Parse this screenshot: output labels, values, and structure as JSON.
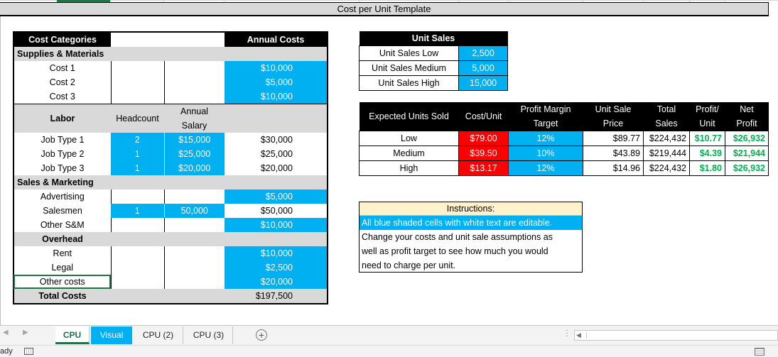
{
  "title": "Cost per Unit Template",
  "cost_table": {
    "header": {
      "category": "Cost Categories",
      "annual": "Annual Costs"
    },
    "supplies": {
      "label": "Supplies & Materials",
      "items": [
        {
          "name": "Cost 1",
          "annual": "$10,000"
        },
        {
          "name": "Cost 2",
          "annual": "$5,000"
        },
        {
          "name": "Cost 3",
          "annual": "$10,000"
        }
      ]
    },
    "labor": {
      "label": "Labor",
      "headcount_label": "Headcount",
      "salary_label_1": "Annual",
      "salary_label_2": "Salary",
      "items": [
        {
          "name": "Job Type 1",
          "headcount": "2",
          "salary": "$15,000",
          "annual": "$30,000"
        },
        {
          "name": "Job Type 2",
          "headcount": "1",
          "salary": "$25,000",
          "annual": "$25,000"
        },
        {
          "name": "Job Type 3",
          "headcount": "1",
          "salary": "$20,000",
          "annual": "$20,000"
        }
      ]
    },
    "sales_marketing": {
      "label": "Sales & Marketing",
      "items": [
        {
          "name": "Advertising",
          "annual": "$5,000"
        },
        {
          "name": "Salesmen",
          "headcount": "1",
          "salary": "50,000",
          "annual": "$50,000"
        },
        {
          "name": "Other S&M",
          "annual": "$10,000"
        }
      ]
    },
    "overhead": {
      "label": "Overhead",
      "items": [
        {
          "name": "Rent",
          "annual": "$10,000"
        },
        {
          "name": "Legal",
          "annual": "$2,500"
        },
        {
          "name": "Other costs",
          "annual": "$20,000"
        }
      ]
    },
    "total": {
      "label": "Total Costs",
      "annual": "$197,500"
    }
  },
  "unit_sales": {
    "header": "Unit Sales",
    "rows": [
      {
        "label": "Unit Sales Low",
        "value": "2,500"
      },
      {
        "label": "Unit Sales Medium",
        "value": "5,000"
      },
      {
        "label": "Unit Sales High",
        "value": "15,000"
      }
    ]
  },
  "profit_table": {
    "headers": {
      "expected": "Expected Units Sold",
      "cost_unit": "Cost/Unit",
      "margin_1": "Profit Margin",
      "margin_2": "Target",
      "price_1": "Unit Sale",
      "price_2": "Price",
      "sales_1": "Total",
      "sales_2": "Sales",
      "ppu_1": "Profit/",
      "ppu_2": "Unit",
      "net_1": "Net",
      "net_2": "Profit"
    },
    "rows": [
      {
        "scenario": "Low",
        "cost_unit": "$79.00",
        "margin": "12%",
        "price": "$89.77",
        "sales": "$224,432",
        "ppu": "$10.77",
        "net": "$26,932"
      },
      {
        "scenario": "Medium",
        "cost_unit": "$39.50",
        "margin": "10%",
        "price": "$43.89",
        "sales": "$219,444",
        "ppu": "$4.39",
        "net": "$21,944"
      },
      {
        "scenario": "High",
        "cost_unit": "$13.17",
        "margin": "12%",
        "price": "$14.96",
        "sales": "$224,432",
        "ppu": "$1.80",
        "net": "$26,932"
      }
    ]
  },
  "instructions": {
    "title": "Instructions:",
    "highlight": "All blue shaded cells with white text are editable.",
    "body_1": "Change your costs and unit sale assumptions as",
    "body_2": "well as profit target to see how much you would",
    "body_3": "need to charge per unit."
  },
  "sheet_tabs": [
    {
      "label": "CPU",
      "active": true
    },
    {
      "label": "Visual",
      "active": false
    },
    {
      "label": "CPU (2)",
      "active": false
    },
    {
      "label": "CPU (3)",
      "active": false
    }
  ],
  "status": {
    "text": "ady"
  },
  "colors": {
    "editable_blue": "#00b0f0",
    "cost_red": "#ff0000",
    "profit_green": "#00b050",
    "instructions_bg": "#fff2cc",
    "header_black": "#000000",
    "section_gray": "#d9d9d9",
    "active_tab": "#217346"
  }
}
